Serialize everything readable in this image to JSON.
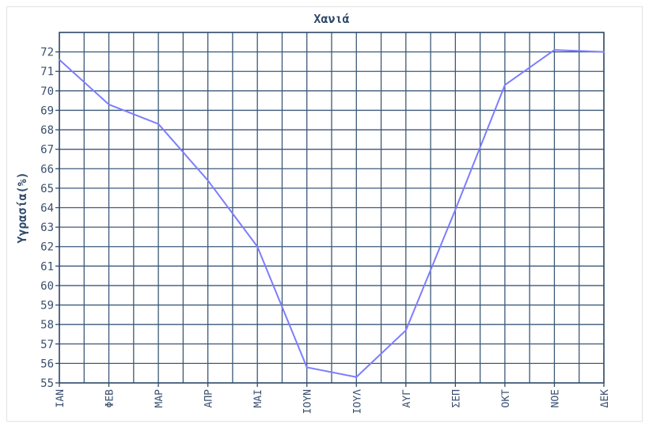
{
  "chart_data": {
    "type": "line",
    "title": "Χανιά",
    "xlabel": "",
    "ylabel": "Υγρασία(%)",
    "categories": [
      "ΙΑΝ",
      "ΦΕΒ",
      "ΜΑΡ",
      "ΑΠΡ",
      "ΜΑΙ",
      "ΙΟΥΝ",
      "ΙΟΥΛ",
      "ΑΥΓ",
      "ΣΕΠ",
      "ΟΚΤ",
      "ΝΟΕ",
      "ΔΕΚ"
    ],
    "yticks": [
      55,
      56,
      57,
      58,
      59,
      60,
      61,
      62,
      63,
      64,
      65,
      66,
      67,
      68,
      69,
      70,
      71,
      72
    ],
    "ylim": [
      55,
      73
    ],
    "grid": true,
    "series": [
      {
        "values": [
          71.6,
          69.3,
          68.3,
          65.4,
          62.0,
          55.8,
          55.3,
          57.7,
          63.9,
          70.3,
          72.1,
          72.0
        ],
        "color": "#7d7dff"
      }
    ],
    "colors": {
      "grid": "#3d5878",
      "axis": "#2f4a6a",
      "text": "#3a4f6e"
    }
  }
}
